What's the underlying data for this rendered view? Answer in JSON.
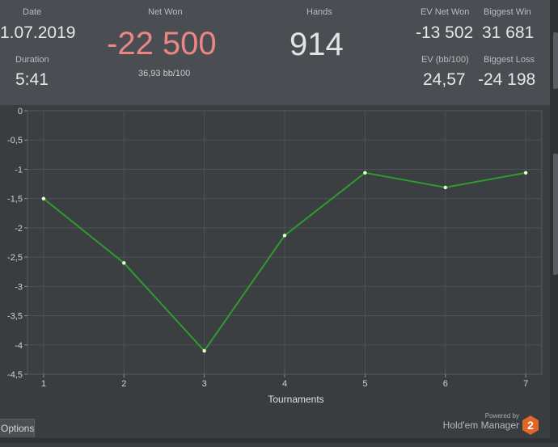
{
  "stats": {
    "date_label": "Date",
    "date_value": "1.07.2019",
    "duration_label": "Duration",
    "duration_value": "5:41",
    "net_won_label": "Net Won",
    "net_won_value": "-22 500",
    "bb_per_100": "36,93 bb/100",
    "hands_label": "Hands",
    "hands_value": "914",
    "ev_net_won_label": "EV Net Won",
    "ev_net_won_value": "-13 502",
    "biggest_win_label": "Biggest Win",
    "biggest_win_value": "31 681",
    "ev_bb100_label": "EV (bb/100)",
    "ev_bb100_value": "24,57",
    "biggest_loss_label": "Biggest Loss",
    "biggest_loss_value": "-24 198"
  },
  "chart_data": {
    "type": "line",
    "xlabel": "Tournaments",
    "ylabel": "",
    "x": [
      1,
      2,
      3,
      4,
      5,
      6,
      7
    ],
    "series": [
      {
        "values": [
          -1.5,
          -2.6,
          -4.1,
          -2.13,
          -1.06,
          -1.31,
          -1.06
        ]
      }
    ],
    "ylim": [
      -4.5,
      0
    ],
    "yticks": [
      "0",
      "-0,5",
      "-1",
      "-1,5",
      "-2",
      "-2,5",
      "-3",
      "-3,5",
      "-4",
      "-4,5"
    ],
    "xticks": [
      "1",
      "2",
      "3",
      "4",
      "5",
      "6",
      "7"
    ],
    "grid": true,
    "line_color": "#2e9b2e",
    "point_color": "#e8ffd0"
  },
  "footer": {
    "options_label": "Options",
    "powered_by": "Powered by",
    "brand": "Hold'em Manager",
    "brand_number": "2",
    "brand_color": "#e0672a"
  }
}
